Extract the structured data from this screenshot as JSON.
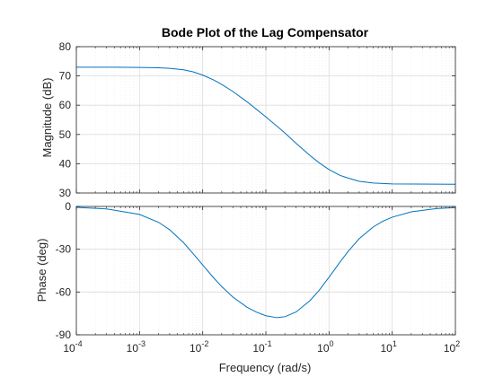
{
  "title": "Bode Plot of the Lag Compensator",
  "colors": {
    "background": "#ffffff",
    "axes_face": "#ffffff",
    "axes_edge": "#262626",
    "grid_major": "#dcdcdc",
    "grid_minor": "#ececec",
    "line": "#0072bd"
  },
  "chart_data": [
    {
      "type": "line",
      "title": "Bode Plot of the Lag Compensator",
      "xlabel": "",
      "ylabel": "Magnitude (dB)",
      "xscale": "log",
      "xlim": [
        0.0001,
        100
      ],
      "ylim": [
        30,
        80
      ],
      "yticks": [
        30,
        40,
        50,
        60,
        70,
        80
      ],
      "ytick_labels": [
        "30",
        "40",
        "50",
        "60",
        "70",
        "80"
      ],
      "xtick_labels_visible": false,
      "grid": true,
      "minor_grid": true,
      "series": [
        {
          "x": [
            0.0001,
            0.0003,
            0.001,
            0.002,
            0.003,
            0.005,
            0.007,
            0.01,
            0.015,
            0.02,
            0.03,
            0.05,
            0.07,
            0.1,
            0.15,
            0.2,
            0.3,
            0.5,
            0.7,
            1,
            1.5,
            2,
            3,
            5,
            10,
            100
          ],
          "values": [
            73.0,
            73.0,
            72.9,
            72.8,
            72.6,
            72.1,
            71.4,
            70.3,
            68.6,
            67.1,
            64.7,
            61.2,
            58.7,
            56.0,
            52.8,
            50.5,
            47.0,
            42.8,
            40.3,
            38.0,
            36.0,
            35.1,
            34.0,
            33.4,
            33.1,
            33.0
          ]
        }
      ]
    },
    {
      "type": "line",
      "xlabel": "Frequency  (rad/s)",
      "ylabel": "Phase (deg)",
      "xscale": "log",
      "xlim": [
        0.0001,
        100
      ],
      "ylim": [
        -90,
        0
      ],
      "xticks": [
        0.0001,
        0.001,
        0.01,
        0.1,
        1,
        10,
        100
      ],
      "xtick_labels": [
        {
          "base": "10",
          "exp": "-4"
        },
        {
          "base": "10",
          "exp": "-3"
        },
        {
          "base": "10",
          "exp": "-2"
        },
        {
          "base": "10",
          "exp": "-1"
        },
        {
          "base": "10",
          "exp": "0"
        },
        {
          "base": "10",
          "exp": "1"
        },
        {
          "base": "10",
          "exp": "2"
        }
      ],
      "yticks": [
        -90,
        -60,
        -30,
        0
      ],
      "ytick_labels": [
        "-90",
        "-60",
        "-30",
        "0"
      ],
      "grid": true,
      "minor_grid": true,
      "series": [
        {
          "x": [
            0.0001,
            0.0003,
            0.001,
            0.002,
            0.003,
            0.005,
            0.007,
            0.01,
            0.015,
            0.02,
            0.03,
            0.05,
            0.07,
            0.1,
            0.15,
            0.2,
            0.3,
            0.5,
            0.7,
            1,
            1.5,
            2,
            3,
            5,
            7,
            10,
            20,
            50,
            100
          ],
          "values": [
            -0.6,
            -1.7,
            -5.6,
            -11.1,
            -16.3,
            -25.5,
            -32.9,
            -41.0,
            -50.2,
            -56.2,
            -63.5,
            -70.6,
            -74.0,
            -76.6,
            -78.0,
            -77.3,
            -74.0,
            -66.0,
            -58.7,
            -49.6,
            -38.8,
            -31.6,
            -22.6,
            -14.4,
            -10.5,
            -7.5,
            -3.8,
            -1.5,
            -0.8
          ]
        }
      ]
    }
  ]
}
